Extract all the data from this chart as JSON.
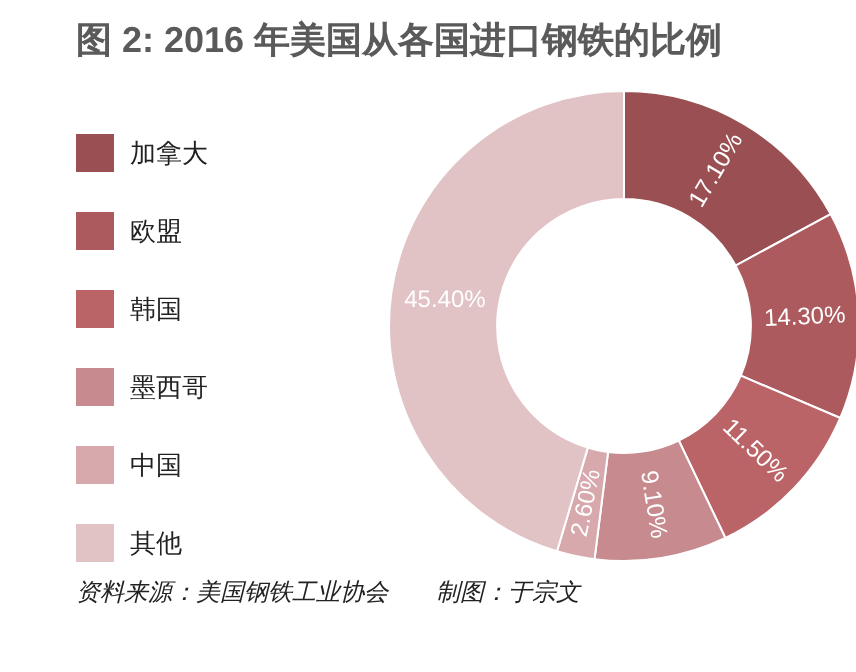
{
  "chart_data": {
    "type": "donut",
    "title": "图 2: 2016 年美国从各国进口钢铁的比例",
    "categories": [
      "加拿大",
      "欧盟",
      "韩国",
      "墨西哥",
      "中国",
      "其他"
    ],
    "values": [
      17.1,
      14.3,
      11.5,
      9.1,
      2.6,
      45.4
    ],
    "value_labels": [
      "17.10%",
      "14.30%",
      "11.50%",
      "9.10%",
      "2.60%",
      "45.40%"
    ],
    "colors": [
      "#9a4f53",
      "#ad5a5f",
      "#bb6468",
      "#c78a8e",
      "#d7a9ac",
      "#e2c3c5"
    ],
    "legend": "left",
    "annotations": [
      "资料来源：美国钢铁工业协会",
      "制图：于宗文"
    ]
  }
}
